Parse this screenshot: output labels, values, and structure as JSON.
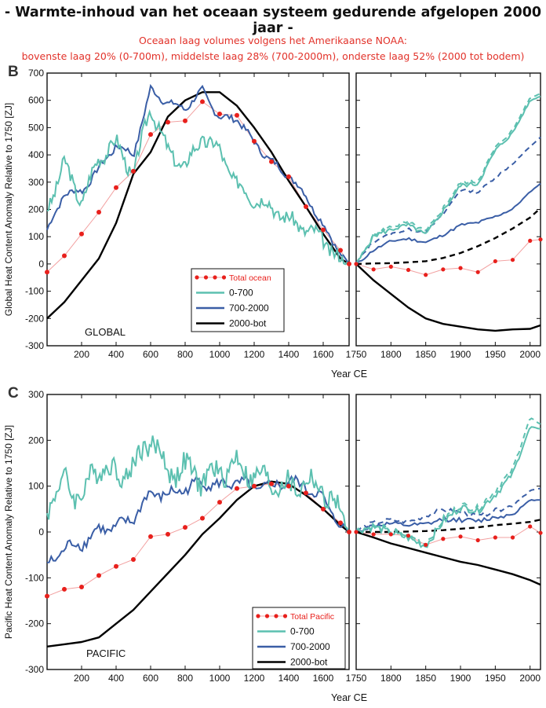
{
  "title": "- Warmte-inhoud van het oceaan systeem gedurende afgelopen 2000 jaar -",
  "subtitle_line1": "Oceaan laag volumes volgens het Amerikaanse NOAA:",
  "subtitle_line2": "bovenste laag 20% (0-700m), middelste laag 28% (700-2000m), onderste laag 52% (2000 tot bodem)",
  "colors": {
    "c0_700": "#5cc0b0",
    "c700_2000": "#3a5ea6",
    "c2000": "#000000",
    "total": "#e8201c",
    "total_line": "#f2a0a0"
  },
  "chart_data": [
    {
      "type": "line",
      "panel_label": "B",
      "region_label": "GLOBAL",
      "ylabel": "Global Heat Content Anomaly Relative to 1750 [ZJ]",
      "xlabel": "Year CE",
      "ylim": [
        -300,
        700
      ],
      "yticks": [
        "-300",
        "-200",
        "-100",
        "0",
        "100",
        "200",
        "300",
        "400",
        "500",
        "600",
        "700"
      ],
      "left_xlim": [
        0,
        1750
      ],
      "left_xticks": [
        "200",
        "400",
        "600",
        "800",
        "1000",
        "1200",
        "1400",
        "1600"
      ],
      "right_xlim": [
        1750,
        2015
      ],
      "right_xticks": [
        "1750",
        "1800",
        "1850",
        "1900",
        "1950",
        "2000"
      ],
      "legend": [
        "Total ocean",
        "0-700",
        "700-2000",
        "2000-bot"
      ],
      "left_series": {
        "x": [
          0,
          100,
          200,
          300,
          400,
          500,
          600,
          700,
          800,
          900,
          1000,
          1100,
          1200,
          1300,
          1400,
          1500,
          1600,
          1700,
          1750
        ],
        "0-700": [
          200,
          370,
          225,
          390,
          445,
          325,
          580,
          410,
          355,
          465,
          415,
          290,
          240,
          210,
          160,
          130,
          90,
          10,
          0
        ],
        "700-2000": [
          120,
          260,
          265,
          350,
          435,
          400,
          640,
          590,
          570,
          635,
          535,
          535,
          445,
          375,
          325,
          250,
          140,
          40,
          0
        ],
        "2000-bot": [
          -200,
          -140,
          -60,
          20,
          150,
          330,
          410,
          540,
          600,
          630,
          630,
          580,
          500,
          410,
          305,
          210,
          110,
          20,
          0
        ],
        "Total ocean": [
          -30,
          30,
          110,
          190,
          280,
          340,
          475,
          520,
          525,
          595,
          550,
          545,
          450,
          375,
          320,
          210,
          125,
          50,
          0
        ]
      },
      "right_series": {
        "x": [
          1750,
          1775,
          1800,
          1825,
          1850,
          1875,
          1900,
          1925,
          1950,
          1975,
          2000,
          2015
        ],
        "0-700": [
          0,
          100,
          120,
          140,
          110,
          200,
          290,
          290,
          410,
          480,
          600,
          615
        ],
        "0-700 dashed": [
          0,
          105,
          130,
          150,
          120,
          210,
          300,
          300,
          420,
          490,
          610,
          625
        ],
        "700-2000": [
          0,
          50,
          80,
          90,
          80,
          110,
          145,
          150,
          170,
          200,
          265,
          295
        ],
        "700-2000 dashed": [
          0,
          80,
          110,
          130,
          120,
          180,
          270,
          260,
          320,
          370,
          430,
          465
        ],
        "2000-bot": [
          0,
          -60,
          -110,
          -160,
          -200,
          -220,
          -230,
          -240,
          -245,
          -240,
          -238,
          -225
        ],
        "2000-bot dashed": [
          0,
          2,
          3,
          6,
          10,
          22,
          40,
          65,
          95,
          130,
          170,
          205
        ],
        "Total ocean": [
          0,
          -20,
          -10,
          -22,
          -40,
          -20,
          -15,
          -30,
          10,
          15,
          85,
          90
        ]
      }
    },
    {
      "type": "line",
      "panel_label": "C",
      "region_label": "PACIFIC",
      "ylabel": "Pacific Heat Content Anomaly Relative to 1750 [ZJ]",
      "xlabel": "Year CE",
      "ylim": [
        -300,
        300
      ],
      "yticks": [
        "-300",
        "-200",
        "-100",
        "0",
        "100",
        "200",
        "300"
      ],
      "left_xlim": [
        0,
        1750
      ],
      "left_xticks": [
        "200",
        "400",
        "600",
        "800",
        "1000",
        "1200",
        "1400",
        "1600"
      ],
      "right_xlim": [
        1750,
        2015
      ],
      "right_xticks": [
        "1750",
        "1800",
        "1850",
        "1900",
        "1950",
        "2000"
      ],
      "legend": [
        "Total Pacific",
        "0-700",
        "700-2000",
        "2000-bot"
      ],
      "left_series": {
        "x": [
          0,
          100,
          200,
          300,
          400,
          500,
          600,
          700,
          800,
          900,
          1000,
          1100,
          1200,
          1300,
          1400,
          1500,
          1600,
          1700,
          1750
        ],
        "0-700": [
          60,
          110,
          75,
          150,
          125,
          140,
          210,
          130,
          140,
          115,
          130,
          150,
          120,
          110,
          95,
          110,
          90,
          40,
          0
        ],
        "700-2000": [
          -75,
          -35,
          -25,
          5,
          10,
          30,
          85,
          80,
          95,
          110,
          100,
          110,
          95,
          100,
          110,
          100,
          70,
          15,
          0
        ],
        "2000-bot": [
          -250,
          -245,
          -240,
          -230,
          -200,
          -170,
          -130,
          -90,
          -50,
          -5,
          30,
          70,
          100,
          110,
          105,
          80,
          50,
          15,
          0
        ],
        "Total Pacific": [
          -140,
          -125,
          -120,
          -95,
          -75,
          -60,
          -10,
          -5,
          10,
          30,
          65,
          95,
          100,
          105,
          100,
          85,
          50,
          20,
          0
        ]
      },
      "right_series": {
        "x": [
          1750,
          1775,
          1800,
          1825,
          1850,
          1875,
          1900,
          1925,
          1950,
          1975,
          2000,
          2015
        ],
        "0-700": [
          0,
          5,
          -5,
          -10,
          -25,
          25,
          50,
          40,
          80,
          130,
          230,
          225
        ],
        "0-700 dashed": [
          0,
          8,
          0,
          -5,
          -20,
          30,
          55,
          45,
          90,
          140,
          250,
          235
        ],
        "700-2000": [
          0,
          10,
          15,
          15,
          20,
          30,
          25,
          20,
          30,
          40,
          70,
          70
        ],
        "700-2000 dashed": [
          0,
          20,
          30,
          25,
          35,
          45,
          40,
          35,
          50,
          60,
          90,
          95
        ],
        "2000-bot": [
          0,
          -12,
          -25,
          -35,
          -45,
          -55,
          -65,
          -72,
          -82,
          -92,
          -105,
          -115
        ],
        "2000-bot dashed": [
          0,
          0,
          0,
          1,
          2,
          4,
          7,
          10,
          15,
          18,
          22,
          27
        ],
        "Total Pacific": [
          0,
          -5,
          -5,
          -8,
          -28,
          -15,
          -10,
          -18,
          -12,
          -12,
          12,
          -2
        ]
      }
    }
  ]
}
